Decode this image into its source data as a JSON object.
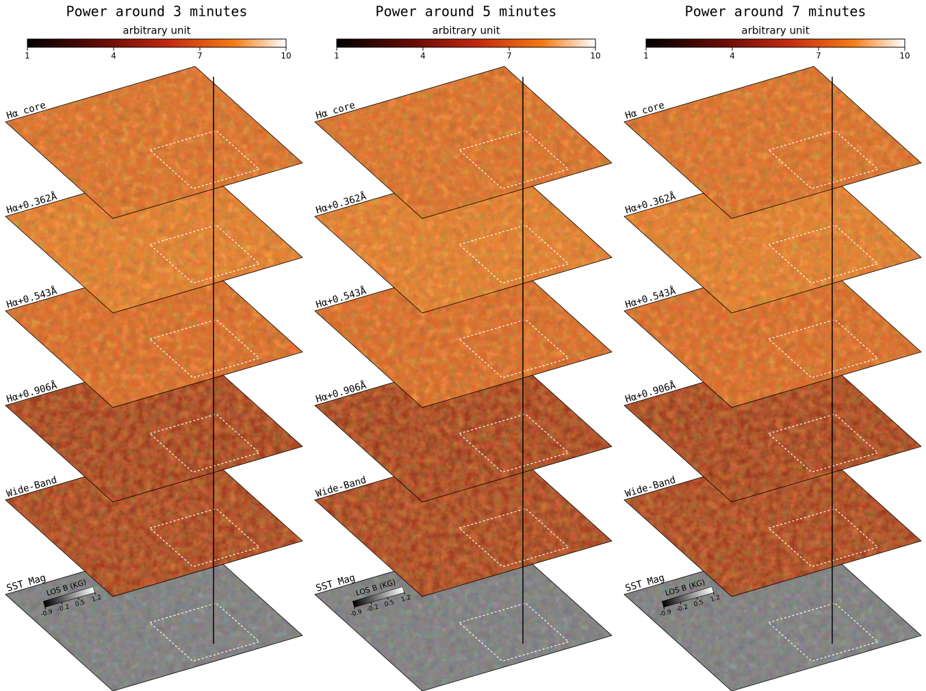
{
  "panels": [
    {
      "title": "Power around 3 minutes",
      "colorbar": {
        "label": "arbitrary unit",
        "range": [
          1,
          10
        ],
        "ticks": [
          1,
          4,
          7,
          10
        ]
      },
      "layers": [
        "Hα core",
        "Hα+0.362Å",
        "Hα+0.543Å",
        "Hα+0.906Å",
        "Wide-Band",
        "SST Mag"
      ],
      "mag_colorbar": {
        "label": "LOS B (KG)",
        "range": [
          -0.9,
          1.2
        ],
        "ticks": [
          -0.9,
          -0.2,
          0.5,
          1.2
        ]
      }
    },
    {
      "title": "Power around 5 minutes",
      "colorbar": {
        "label": "arbitrary unit",
        "range": [
          1,
          10
        ],
        "ticks": [
          1,
          4,
          7,
          10
        ]
      },
      "layers": [
        "Hα core",
        "Hα+0.362Å",
        "Hα+0.543Å",
        "Hα+0.906Å",
        "Wide-Band",
        "SST Mag"
      ],
      "mag_colorbar": {
        "label": "LOS B (KG)",
        "range": [
          -0.9,
          1.2
        ],
        "ticks": [
          -0.9,
          -0.2,
          0.5,
          1.2
        ]
      }
    },
    {
      "title": "Power around 7 minutes",
      "colorbar": {
        "label": "arbitrary unit",
        "range": [
          1,
          10
        ],
        "ticks": [
          1,
          4,
          7,
          10
        ]
      },
      "layers": [
        "Hα core",
        "Hα+0.362Å",
        "Hα+0.543Å",
        "Hα+0.906Å",
        "Wide-Band",
        "SST Mag"
      ],
      "mag_colorbar": {
        "label": "LOS B (KG)",
        "range": [
          -0.9,
          1.2
        ],
        "ticks": [
          -0.9,
          -0.2,
          0.5,
          1.2
        ]
      }
    }
  ]
}
